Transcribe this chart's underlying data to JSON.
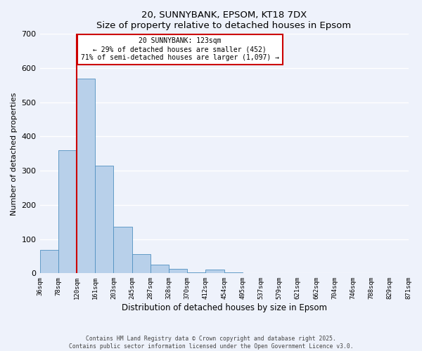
{
  "title": "20, SUNNYBANK, EPSOM, KT18 7DX",
  "subtitle": "Size of property relative to detached houses in Epsom",
  "xlabel": "Distribution of detached houses by size in Epsom",
  "ylabel": "Number of detached properties",
  "bin_labels": [
    "36sqm",
    "78sqm",
    "120sqm",
    "161sqm",
    "203sqm",
    "245sqm",
    "287sqm",
    "328sqm",
    "370sqm",
    "412sqm",
    "454sqm",
    "495sqm",
    "537sqm",
    "579sqm",
    "621sqm",
    "662sqm",
    "704sqm",
    "746sqm",
    "788sqm",
    "829sqm",
    "871sqm"
  ],
  "bar_heights": [
    68,
    360,
    570,
    315,
    137,
    57,
    26,
    12,
    3,
    10,
    2,
    0,
    0,
    0,
    0,
    0,
    0,
    0,
    0,
    0
  ],
  "bar_color": "#b8d0ea",
  "bar_edge_color": "#5090c0",
  "vline_x": 2,
  "vline_color": "#cc0000",
  "ylim": [
    0,
    700
  ],
  "yticks": [
    0,
    100,
    200,
    300,
    400,
    500,
    600,
    700
  ],
  "annotation_title": "20 SUNNYBANK: 123sqm",
  "annotation_line1": "← 29% of detached houses are smaller (452)",
  "annotation_line2": "71% of semi-detached houses are larger (1,097) →",
  "footer1": "Contains HM Land Registry data © Crown copyright and database right 2025.",
  "footer2": "Contains public sector information licensed under the Open Government Licence v3.0.",
  "background_color": "#eef2fb",
  "grid_color": "#ffffff"
}
